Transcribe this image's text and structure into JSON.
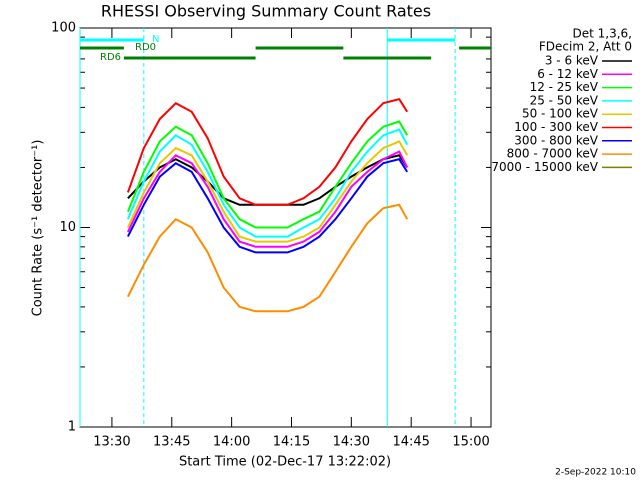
{
  "chart_data": {
    "type": "line",
    "title": "RHESSI Observing Summary Count Rates",
    "x_label": "Start Time (02-Dec-17 13:22:02)",
    "y_label": "Count Rate (s⁻¹ detector⁻¹)",
    "legend_title": [
      "Det 1,3,6,",
      "FDecim 2, Att 0"
    ],
    "footer": "2-Sep-2022 10:10",
    "log_y": true,
    "xlim": [
      "13:22",
      "15:05"
    ],
    "xticks": [
      "13:30",
      "13:45",
      "14:00",
      "14:15",
      "14:30",
      "14:45",
      "15:00"
    ],
    "ylim": [
      1,
      100
    ],
    "yticks": [
      1,
      10,
      100
    ],
    "yminorticks": [
      2,
      3,
      4,
      5,
      6,
      7,
      8,
      9,
      20,
      30,
      40,
      50,
      60,
      70,
      80,
      90
    ],
    "x": [
      "13:34",
      "13:38",
      "13:42",
      "13:46",
      "13:50",
      "13:54",
      "13:58",
      "14:02",
      "14:06",
      "14:10",
      "14:14",
      "14:18",
      "14:22",
      "14:26",
      "14:30",
      "14:34",
      "14:38",
      "14:42",
      "14:44"
    ],
    "series": [
      {
        "name": "3 - 6 keV",
        "color": "#000000",
        "values": [
          14,
          17,
          20,
          22,
          20,
          17,
          14,
          13,
          13,
          13,
          13,
          13,
          14,
          16,
          18,
          20,
          22,
          23,
          20
        ]
      },
      {
        "name": "6 - 12 keV",
        "color": "#ff00ff",
        "values": [
          9.5,
          14,
          19,
          23,
          21,
          16,
          11,
          8.5,
          8,
          8,
          8,
          8.5,
          9.5,
          12,
          16,
          19,
          22,
          24,
          20
        ]
      },
      {
        "name": "12 - 25 keV",
        "color": "#00ff00",
        "values": [
          12,
          19,
          27,
          32,
          29,
          21,
          14,
          11,
          10,
          10,
          10,
          11,
          12,
          16,
          21,
          27,
          32,
          34,
          29
        ]
      },
      {
        "name": "25 - 50 keV",
        "color": "#00ffff",
        "values": [
          11,
          17,
          24,
          29,
          26,
          19,
          13,
          10,
          9,
          9,
          9,
          10,
          11,
          14,
          19,
          24,
          29,
          31,
          26
        ]
      },
      {
        "name": "50 - 100 keV",
        "color": "#e6c800",
        "values": [
          10,
          15,
          21,
          25,
          23,
          17,
          12,
          9,
          8.5,
          8.5,
          8.5,
          9,
          10,
          13,
          17,
          21,
          25,
          27,
          23
        ]
      },
      {
        "name": "100 - 300 keV",
        "color": "#ff0000",
        "values": [
          15,
          25,
          35,
          42,
          38,
          28,
          18,
          14,
          13,
          13,
          13,
          14,
          16,
          20,
          27,
          35,
          42,
          44,
          38
        ]
      },
      {
        "name": "300 - 800 keV",
        "color": "#0000ff",
        "values": [
          9,
          13,
          18,
          21,
          19,
          14,
          10,
          8,
          7.5,
          7.5,
          7.5,
          8,
          9,
          11,
          14,
          18,
          21,
          22,
          19
        ]
      },
      {
        "name": "800 - 7000 keV",
        "color": "#ff8c00",
        "values": [
          4.5,
          6.5,
          9,
          11,
          10,
          7.5,
          5,
          4,
          3.8,
          3.8,
          3.8,
          4,
          4.5,
          6,
          8,
          10.5,
          12.5,
          13,
          11
        ]
      },
      {
        "name": "7000 - 15000 keV",
        "color": "#808000",
        "values": [
          null,
          null,
          null,
          null,
          null,
          null,
          null,
          null,
          null,
          null,
          null,
          null,
          null,
          null,
          null,
          null,
          null,
          null,
          null
        ]
      }
    ],
    "markers": [
      {
        "x": "13:22",
        "dashed": false
      },
      {
        "x": "13:38",
        "dashed": true
      },
      {
        "x": "14:39",
        "dashed": false
      },
      {
        "x": "14:56",
        "dashed": true
      }
    ],
    "marker_color": "#00ffff",
    "bands": [
      {
        "label": "N",
        "color": "#00ffff",
        "spans": [
          [
            "13:22",
            "13:38"
          ],
          [
            "14:39",
            "14:56"
          ]
        ]
      },
      {
        "label": "RD0",
        "color": "#008000",
        "spans": [
          [
            "13:22",
            "13:33"
          ],
          [
            "14:06",
            "14:28"
          ],
          [
            "14:57",
            "15:05"
          ]
        ]
      },
      {
        "label": "RD6",
        "color": "#008000",
        "spans": [
          [
            "13:33",
            "14:06"
          ],
          [
            "14:28",
            "14:50"
          ]
        ]
      }
    ]
  }
}
